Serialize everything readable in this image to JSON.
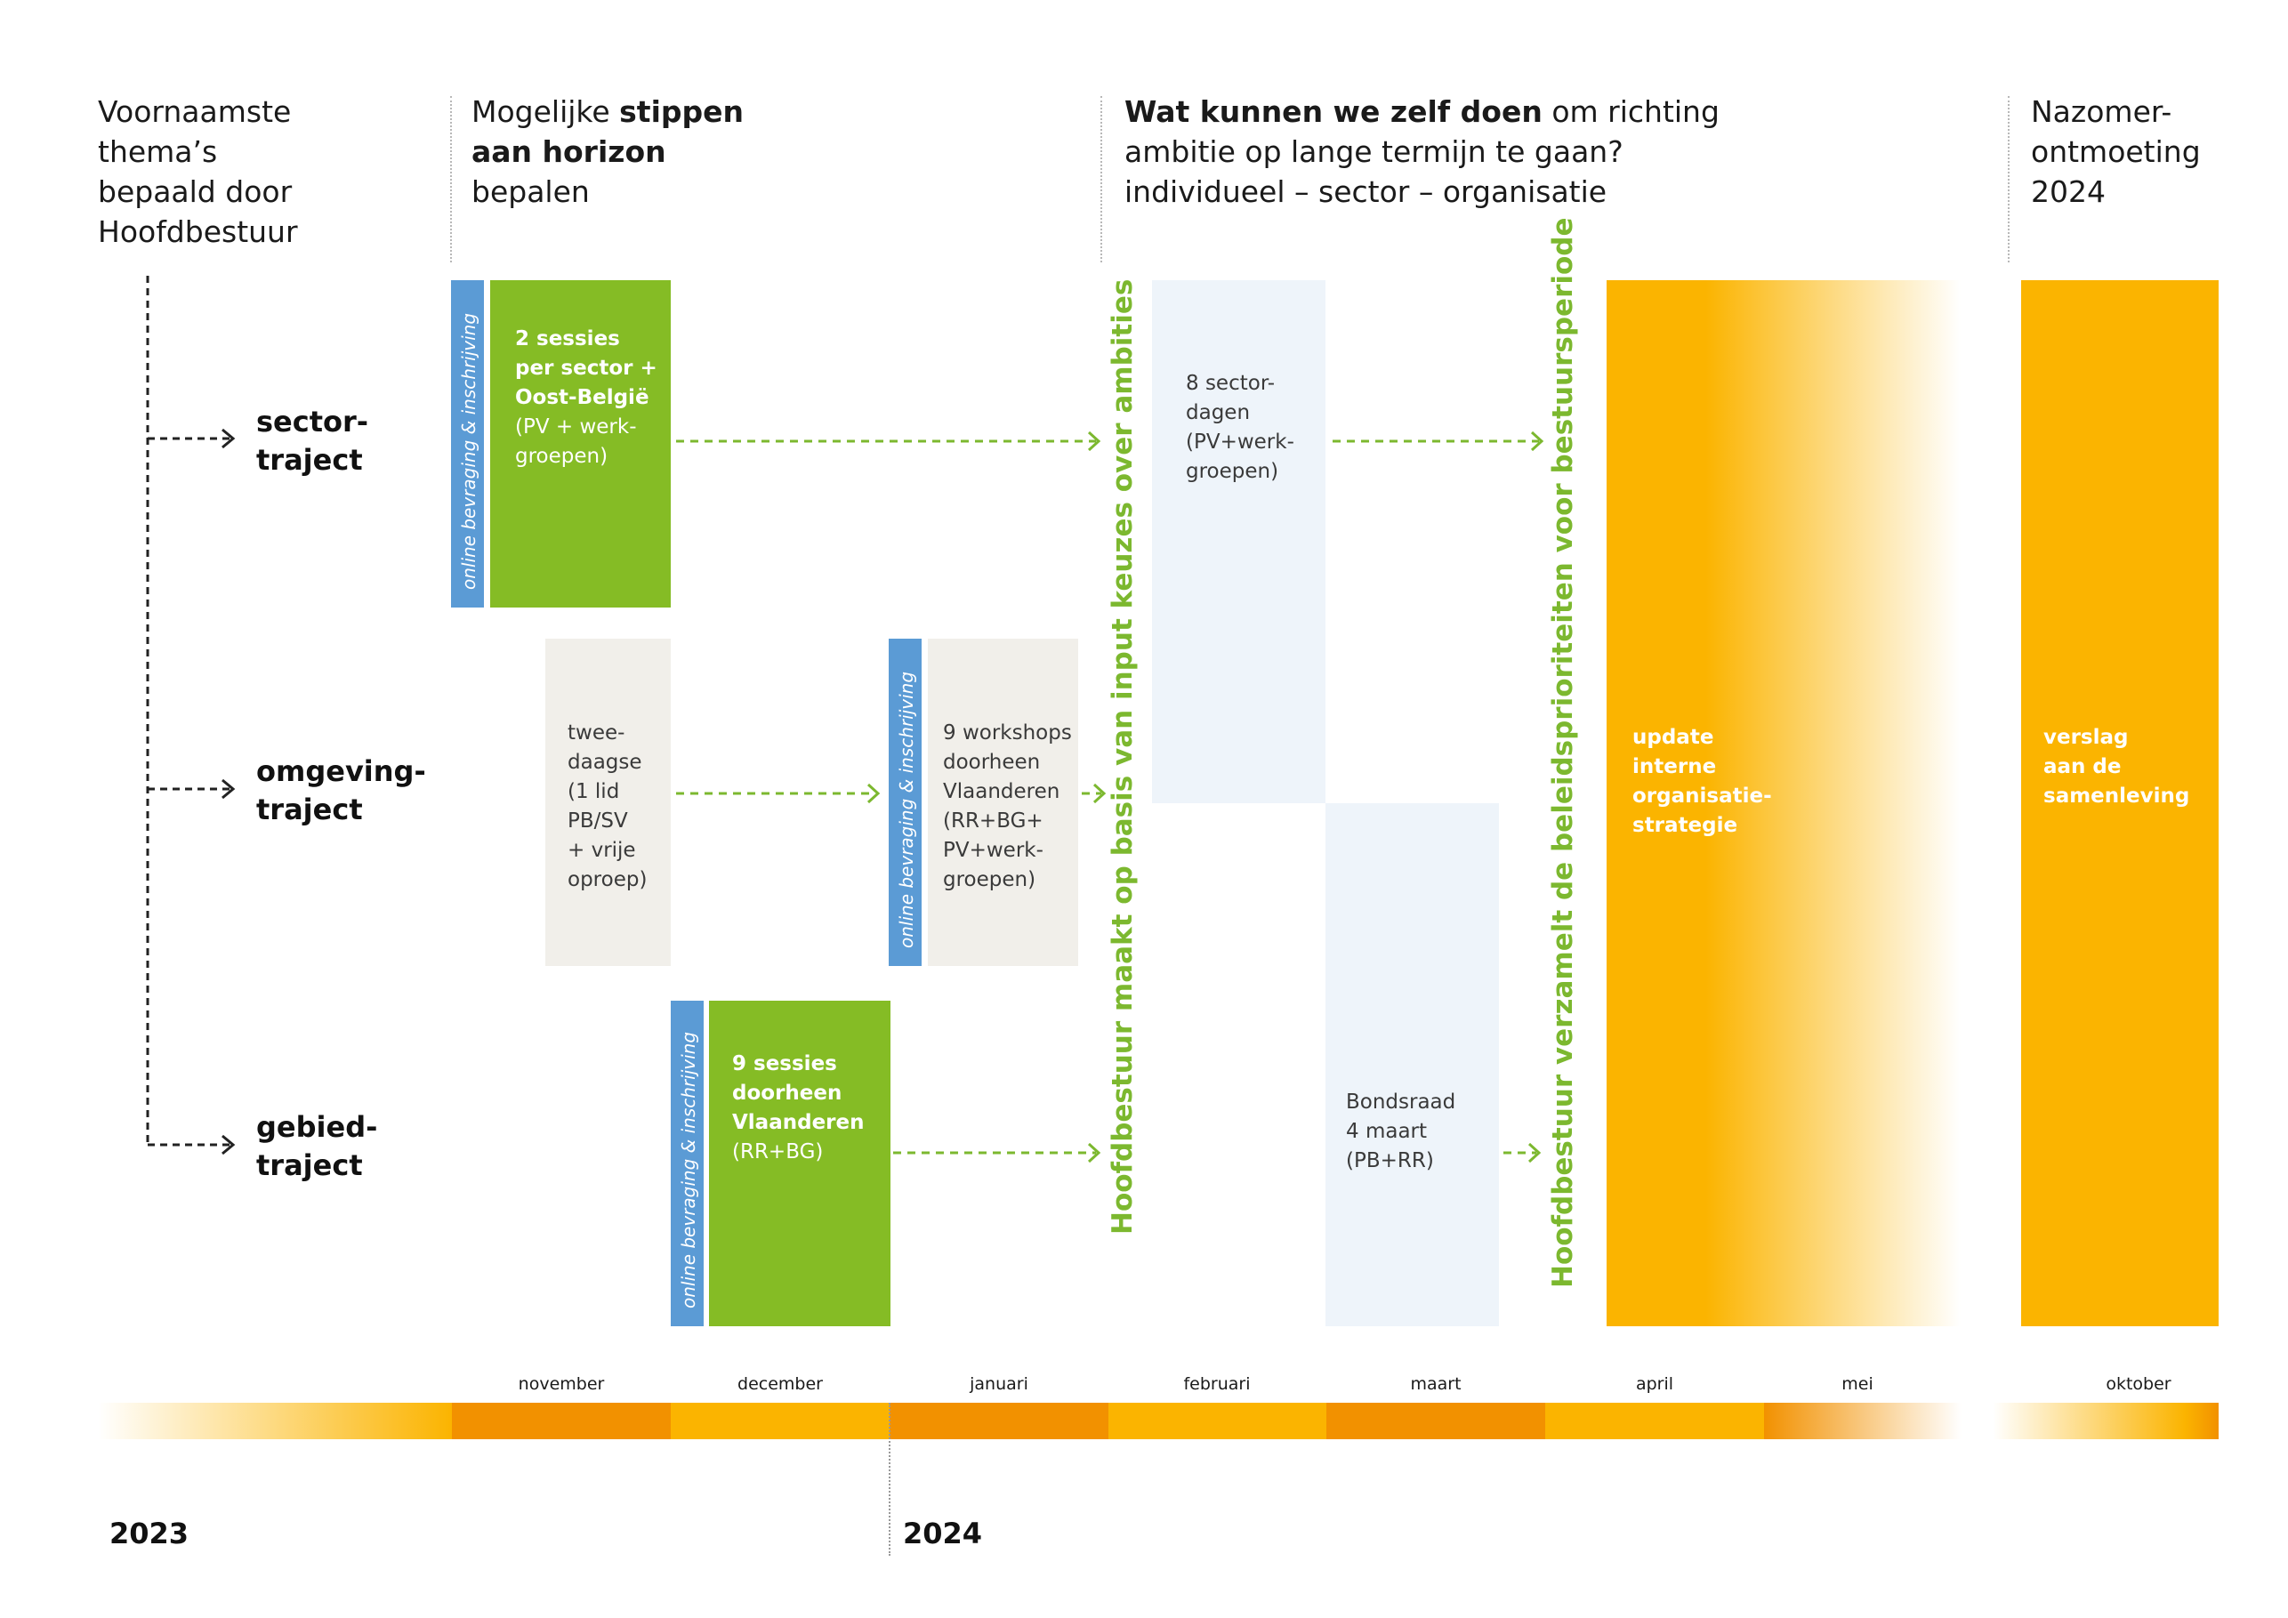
{
  "colors": {
    "green": "#85bc25",
    "orange": "#fbb400",
    "dark_orange": "#f29100",
    "blue": "#5b9bd5",
    "beige": "#f1efea",
    "pale_blue": "#eef4fa",
    "arrow_green": "#7cb82f"
  },
  "headers": {
    "col1": {
      "line1": "Voornaamste",
      "line2": "thema’s",
      "line3": "bepaald door",
      "line4": "Hoofdbestuur"
    },
    "col2": {
      "l1_normal": "Mogelijke ",
      "l1_bold": "stippen",
      "l2_bold": "aan horizon",
      "l3": "bepalen"
    },
    "col3": {
      "l1_bold": "Wat kunnen we zelf doen",
      "l1_normal": " om richting",
      "l2": "ambitie op lange termijn te gaan?",
      "l3": "individueel – sector – organisatie"
    },
    "col4": {
      "line1": "Nazomer-",
      "line2": "ontmoeting",
      "line3": "2024"
    }
  },
  "tracks": [
    {
      "line1": "sector-",
      "line2": "traject"
    },
    {
      "line1": "omgeving-",
      "line2": "traject"
    },
    {
      "line1": "gebied-",
      "line2": "traject"
    }
  ],
  "online_label": "online bevraging & inschrijving",
  "boxes": {
    "sector_sessions": {
      "bold": "2 sessies\nper sector +\nOost-België",
      "normal": "(PV + werk-\ngroepen)"
    },
    "tweedaagse": "twee-\ndaagse\n(1 lid\nPB/SV\n+ vrije\noproep)",
    "workshops": "9 workshops\ndoorheen\nVlaanderen\n(RR+BG+\nPV+werk-\ngroepen)",
    "gebied_sessions": {
      "bold": "9 sessies\ndoorheen\nVlaanderen",
      "normal": "(RR+BG)"
    },
    "sectordagen": "8 sector-\ndagen\n(PV+werk-\ngroepen)",
    "bondsraad": "Bondsraad\n4 maart\n(PB+RR)",
    "update": "update\ninterne\norganisatie-\nstrategie",
    "verslag": "verslag\naan de\nsamenleving"
  },
  "vertical_statements": {
    "choices": "Hoofdbestuur maakt op basis van input keuzes over ambities",
    "priorities": "Hoofdbestuur verzamelt de beleidsprioriteiten voor bestuursperiode"
  },
  "months": [
    "november",
    "december",
    "januari",
    "februari",
    "maart",
    "april",
    "mei",
    "oktober"
  ],
  "years": [
    "2023",
    "2024"
  ]
}
